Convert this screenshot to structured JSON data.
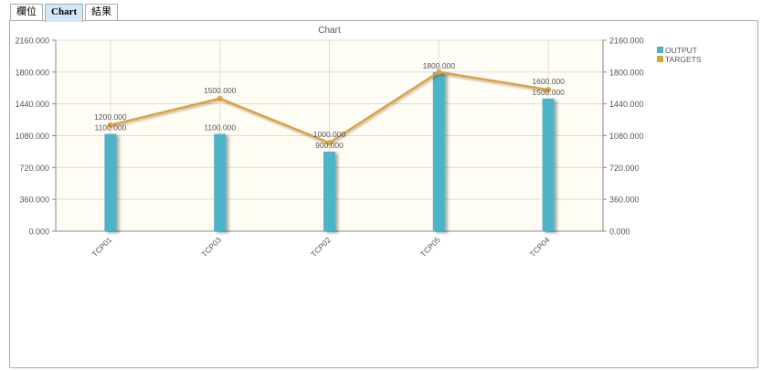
{
  "tabs": [
    {
      "label": "欄位",
      "active": false
    },
    {
      "label": "Chart",
      "active": true
    },
    {
      "label": "結果",
      "active": false
    }
  ],
  "chart_data": {
    "type": "bar",
    "title": "Chart",
    "categories": [
      "TCP01",
      "TCP03",
      "TCP02",
      "TCP05",
      "TCP04"
    ],
    "series": [
      {
        "name": "OUTPUT",
        "type": "bar",
        "color": "#4db3c9",
        "values": [
          1100,
          1100,
          900,
          1800,
          1500
        ],
        "labels": [
          "1100.000",
          "1100.000",
          "900.000",
          "1800.000",
          "1500.000"
        ]
      },
      {
        "name": "TARGETS",
        "type": "line",
        "color": "#e0a03a",
        "values": [
          1200,
          1500,
          1000,
          null,
          1600
        ],
        "labels": [
          "1200.000",
          "1500.000",
          "1000.000",
          "",
          "1600.000"
        ]
      }
    ],
    "ylim": [
      0,
      2160
    ],
    "yticks": [
      "0.000",
      "360.000",
      "720.000",
      "1080.000",
      "1440.000",
      "1800.000",
      "2160.000"
    ],
    "y2ticks": [
      "0.000",
      "360.000",
      "720.000",
      "1080.000",
      "1440.000",
      "1800.000",
      "2160.000"
    ],
    "grid": true,
    "legend": "top-right",
    "plot_background": "#fffdf4"
  }
}
